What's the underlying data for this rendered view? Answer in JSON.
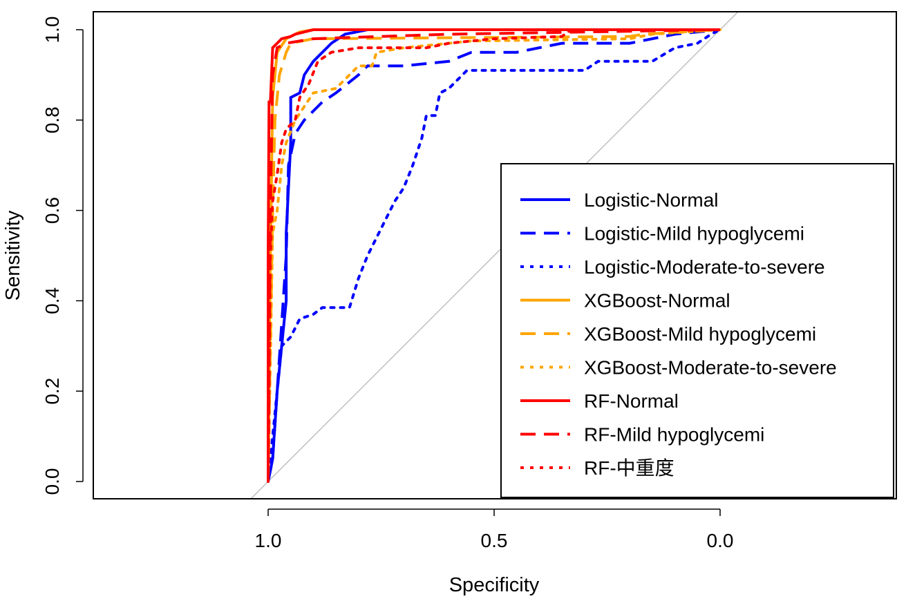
{
  "chart_data": {
    "type": "line",
    "title": "",
    "xlabel": "Specificity",
    "ylabel": "Sensitivity",
    "xlim": [
      1.38,
      -0.39
    ],
    "ylim": [
      -0.04,
      1.04
    ],
    "xticks": [
      "1.0",
      "0.5",
      "0.0"
    ],
    "xtick_values": [
      1.0,
      0.5,
      0.0
    ],
    "yticks": [
      "0.0",
      "0.2",
      "0.4",
      "0.6",
      "0.8",
      "1.0"
    ],
    "ytick_values": [
      0,
      0.2,
      0.4,
      0.6,
      0.8,
      1.0
    ],
    "legend_position": "bottom-right",
    "reference_line": {
      "from": [
        1,
        0
      ],
      "to": [
        0,
        1
      ],
      "color": "#bebebe"
    },
    "series": [
      {
        "name": "Logistic-Normal",
        "color": "#0000ff",
        "dash": "solid",
        "points": [
          [
            1,
            0
          ],
          [
            0.99,
            0.05
          ],
          [
            0.98,
            0.2
          ],
          [
            0.97,
            0.3
          ],
          [
            0.96,
            0.4
          ],
          [
            0.96,
            0.55
          ],
          [
            0.955,
            0.65
          ],
          [
            0.95,
            0.75
          ],
          [
            0.95,
            0.85
          ],
          [
            0.93,
            0.86
          ],
          [
            0.92,
            0.9
          ],
          [
            0.9,
            0.93
          ],
          [
            0.88,
            0.95
          ],
          [
            0.86,
            0.97
          ],
          [
            0.83,
            0.99
          ],
          [
            0.78,
            1
          ],
          [
            0,
            1
          ]
        ]
      },
      {
        "name": "Logistic-Mild hypoglycemi",
        "color": "#0000ff",
        "dash": "dashed",
        "points": [
          [
            1,
            0
          ],
          [
            0.99,
            0.05
          ],
          [
            0.98,
            0.2
          ],
          [
            0.97,
            0.35
          ],
          [
            0.96,
            0.5
          ],
          [
            0.955,
            0.7
          ],
          [
            0.94,
            0.77
          ],
          [
            0.92,
            0.8
          ],
          [
            0.88,
            0.84
          ],
          [
            0.85,
            0.86
          ],
          [
            0.8,
            0.9
          ],
          [
            0.78,
            0.92
          ],
          [
            0.7,
            0.92
          ],
          [
            0.6,
            0.93
          ],
          [
            0.55,
            0.95
          ],
          [
            0.45,
            0.95
          ],
          [
            0.35,
            0.97
          ],
          [
            0.2,
            0.97
          ],
          [
            0.1,
            0.99
          ],
          [
            0,
            1
          ]
        ]
      },
      {
        "name": "Logistic-Moderate-to-severe",
        "color": "#0000ff",
        "dash": "dotted",
        "points": [
          [
            1,
            0
          ],
          [
            0.99,
            0.1
          ],
          [
            0.98,
            0.2
          ],
          [
            0.97,
            0.3
          ],
          [
            0.95,
            0.32
          ],
          [
            0.93,
            0.36
          ],
          [
            0.9,
            0.37
          ],
          [
            0.88,
            0.385
          ],
          [
            0.82,
            0.385
          ],
          [
            0.8,
            0.45
          ],
          [
            0.78,
            0.5
          ],
          [
            0.75,
            0.56
          ],
          [
            0.72,
            0.62
          ],
          [
            0.7,
            0.65
          ],
          [
            0.68,
            0.7
          ],
          [
            0.66,
            0.76
          ],
          [
            0.65,
            0.81
          ],
          [
            0.63,
            0.81
          ],
          [
            0.62,
            0.86
          ],
          [
            0.6,
            0.87
          ],
          [
            0.58,
            0.89
          ],
          [
            0.56,
            0.91
          ],
          [
            0.3,
            0.91
          ],
          [
            0.27,
            0.93
          ],
          [
            0.15,
            0.93
          ],
          [
            0.1,
            0.96
          ],
          [
            0.05,
            0.97
          ],
          [
            0.02,
            0.99
          ],
          [
            0,
            1
          ]
        ]
      },
      {
        "name": "XGBoost-Normal",
        "color": "#ffa500",
        "dash": "solid",
        "points": [
          [
            1,
            0
          ],
          [
            0.995,
            0.5
          ],
          [
            0.99,
            0.85
          ],
          [
            0.98,
            0.95
          ],
          [
            0.96,
            0.98
          ],
          [
            0.93,
            0.995
          ],
          [
            0.9,
            1
          ],
          [
            0,
            1
          ]
        ]
      },
      {
        "name": "XGBoost-Mild hypoglycemi",
        "color": "#ffa500",
        "dash": "dashed",
        "points": [
          [
            1,
            0
          ],
          [
            0.99,
            0.6
          ],
          [
            0.985,
            0.8
          ],
          [
            0.975,
            0.9
          ],
          [
            0.96,
            0.95
          ],
          [
            0.95,
            0.97
          ],
          [
            0.9,
            0.98
          ],
          [
            0.2,
            0.985
          ],
          [
            0.17,
            0.99
          ],
          [
            0,
            1
          ]
        ]
      },
      {
        "name": "XGBoost-Moderate-to-severe",
        "color": "#ffa500",
        "dash": "dotted",
        "points": [
          [
            1,
            0
          ],
          [
            0.99,
            0.55
          ],
          [
            0.98,
            0.6
          ],
          [
            0.97,
            0.7
          ],
          [
            0.96,
            0.75
          ],
          [
            0.94,
            0.8
          ],
          [
            0.92,
            0.83
          ],
          [
            0.9,
            0.86
          ],
          [
            0.85,
            0.87
          ],
          [
            0.8,
            0.92
          ],
          [
            0.77,
            0.92
          ],
          [
            0.76,
            0.95
          ],
          [
            0.7,
            0.96
          ],
          [
            0.6,
            0.97
          ],
          [
            0.55,
            0.975
          ],
          [
            0.2,
            0.98
          ],
          [
            0.15,
            0.99
          ],
          [
            0,
            1
          ]
        ]
      },
      {
        "name": "RF-Normal",
        "color": "#ff0000",
        "dash": "solid",
        "points": [
          [
            1,
            0
          ],
          [
            1,
            0.5
          ],
          [
            0.998,
            0.84
          ],
          [
            0.995,
            0.84
          ],
          [
            0.99,
            0.96
          ],
          [
            0.98,
            0.97
          ],
          [
            0.97,
            0.98
          ],
          [
            0.95,
            0.985
          ],
          [
            0.94,
            0.99
          ],
          [
            0.9,
            1
          ],
          [
            0,
            1
          ]
        ]
      },
      {
        "name": "RF-Mild hypoglycemi",
        "color": "#ff0000",
        "dash": "dashed",
        "points": [
          [
            1,
            0
          ],
          [
            0.995,
            0.6
          ],
          [
            0.99,
            0.9
          ],
          [
            0.98,
            0.96
          ],
          [
            0.96,
            0.97
          ],
          [
            0.9,
            0.98
          ],
          [
            0.6,
            0.99
          ],
          [
            0,
            1
          ]
        ]
      },
      {
        "name": "RF-中重度",
        "color": "#ff0000",
        "dash": "dotted",
        "points": [
          [
            1,
            0
          ],
          [
            0.995,
            0.5
          ],
          [
            0.99,
            0.62
          ],
          [
            0.98,
            0.68
          ],
          [
            0.97,
            0.75
          ],
          [
            0.96,
            0.78
          ],
          [
            0.94,
            0.8
          ],
          [
            0.93,
            0.85
          ],
          [
            0.91,
            0.88
          ],
          [
            0.89,
            0.93
          ],
          [
            0.86,
            0.95
          ],
          [
            0.8,
            0.96
          ],
          [
            0.65,
            0.96
          ],
          [
            0.6,
            0.97
          ],
          [
            0.5,
            0.98
          ],
          [
            0.35,
            0.985
          ],
          [
            0.33,
            1
          ],
          [
            0,
            1
          ]
        ]
      }
    ]
  }
}
